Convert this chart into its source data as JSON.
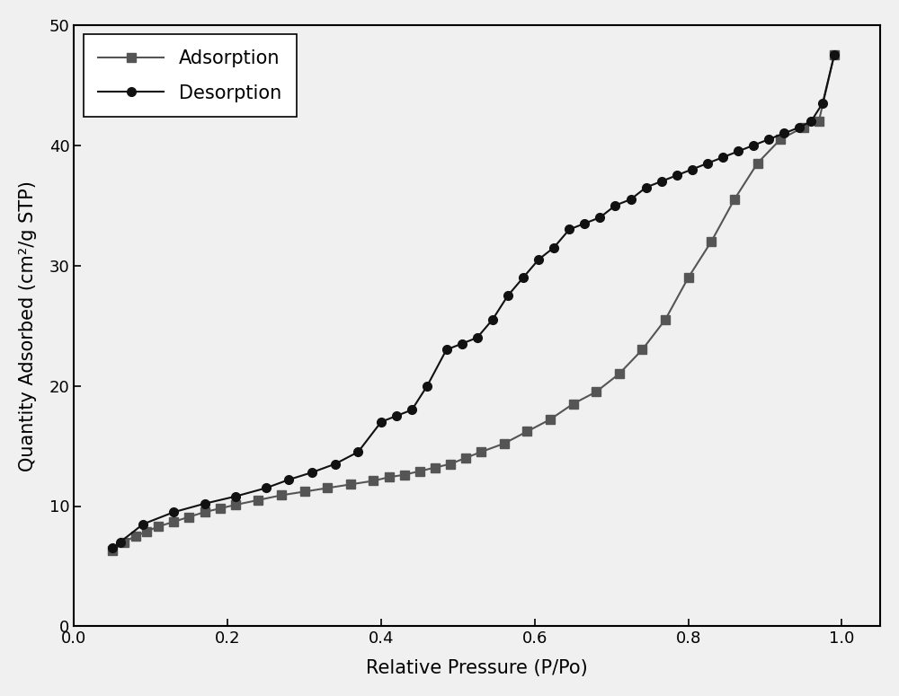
{
  "adsorption_x": [
    0.05,
    0.065,
    0.08,
    0.095,
    0.11,
    0.13,
    0.15,
    0.17,
    0.19,
    0.21,
    0.24,
    0.27,
    0.3,
    0.33,
    0.36,
    0.39,
    0.41,
    0.43,
    0.45,
    0.47,
    0.49,
    0.51,
    0.53,
    0.56,
    0.59,
    0.62,
    0.65,
    0.68,
    0.71,
    0.74,
    0.77,
    0.8,
    0.83,
    0.86,
    0.89,
    0.92,
    0.95,
    0.97,
    0.99
  ],
  "adsorption_y": [
    6.3,
    7.0,
    7.5,
    7.9,
    8.3,
    8.7,
    9.1,
    9.5,
    9.8,
    10.1,
    10.5,
    10.9,
    11.2,
    11.5,
    11.8,
    12.1,
    12.4,
    12.6,
    12.9,
    13.2,
    13.5,
    14.0,
    14.5,
    15.2,
    16.2,
    17.2,
    18.5,
    19.5,
    21.0,
    23.0,
    25.5,
    29.0,
    32.0,
    35.5,
    38.5,
    40.5,
    41.5,
    42.0,
    47.5
  ],
  "desorption_x": [
    0.99,
    0.975,
    0.96,
    0.945,
    0.925,
    0.905,
    0.885,
    0.865,
    0.845,
    0.825,
    0.805,
    0.785,
    0.765,
    0.745,
    0.725,
    0.705,
    0.685,
    0.665,
    0.645,
    0.625,
    0.605,
    0.585,
    0.565,
    0.545,
    0.525,
    0.505,
    0.485,
    0.46,
    0.44,
    0.42,
    0.4,
    0.37,
    0.34,
    0.31,
    0.28,
    0.25,
    0.21,
    0.17,
    0.13,
    0.09,
    0.06,
    0.05
  ],
  "desorption_y": [
    47.5,
    43.5,
    42.0,
    41.5,
    41.0,
    40.5,
    40.0,
    39.5,
    39.0,
    38.5,
    38.0,
    37.5,
    37.0,
    36.5,
    35.5,
    35.0,
    34.0,
    33.5,
    33.0,
    31.5,
    30.5,
    29.0,
    27.5,
    25.5,
    24.0,
    23.5,
    23.0,
    20.0,
    18.0,
    17.5,
    17.0,
    14.5,
    13.5,
    12.8,
    12.2,
    11.5,
    10.8,
    10.2,
    9.5,
    8.5,
    7.0,
    6.5
  ],
  "adsorption_color": "#555555",
  "desorption_color": "#111111",
  "adsorption_label": "Adsorption",
  "desorption_label": "Desorption",
  "xlabel": "Relative Pressure (P/Po)",
  "ylabel": "Quantity Adsorbed (cm²/g STP)",
  "xlim": [
    0.0,
    1.05
  ],
  "ylim": [
    0,
    50
  ],
  "xticks": [
    0.0,
    0.2,
    0.4,
    0.6,
    0.8,
    1.0
  ],
  "yticks": [
    0,
    10,
    20,
    30,
    40,
    50
  ],
  "background_color": "#f0f0f0",
  "grid": false,
  "legend_loc": "upper left",
  "marker_size_sq": 7,
  "marker_size_circ": 7,
  "linewidth": 1.5,
  "label_fontsize": 15,
  "tick_fontsize": 13,
  "legend_fontsize": 15
}
